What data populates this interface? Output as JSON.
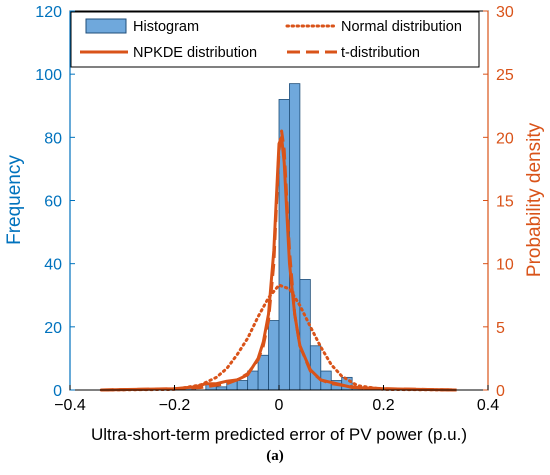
{
  "caption": "(a)",
  "chart_data": {
    "type": "histogram",
    "xlabel": "Ultra-short-term predicted error of PV power (p.u.)",
    "ylabel_left": "Frequency",
    "ylabel_right": "Probability density",
    "xlim": [
      -0.4,
      0.4
    ],
    "ylim_left": [
      0,
      120
    ],
    "ylim_right": [
      0,
      30
    ],
    "xticks": [
      "−0.4",
      "−0.2",
      "0",
      "0.2",
      "0.4"
    ],
    "xtick_values": [
      -0.4,
      -0.2,
      0,
      0.2,
      0.4
    ],
    "yticks_left": [
      "0",
      "20",
      "40",
      "60",
      "80",
      "100",
      "120"
    ],
    "yticks_right": [
      "0",
      "5",
      "10",
      "15",
      "20",
      "25",
      "30"
    ],
    "legend": {
      "position": "top",
      "entries": [
        "Histogram",
        "Normal distribution",
        "NPKDE distribution",
        "t-distribution"
      ]
    },
    "colors": {
      "left_axis": "#0072BD",
      "right_axis": "#D95319",
      "bar_fill": "#6FA8DC",
      "bar_edge": "#1F4E79",
      "curve": "#D95319"
    },
    "histogram": {
      "bin_edges": [
        -0.34,
        -0.32,
        -0.3,
        -0.28,
        -0.26,
        -0.24,
        -0.22,
        -0.2,
        -0.18,
        -0.16,
        -0.14,
        -0.12,
        -0.1,
        -0.08,
        -0.06,
        -0.04,
        -0.02,
        0.0,
        0.02,
        0.04,
        0.06,
        0.08,
        0.1,
        0.12,
        0.14,
        0.16,
        0.18,
        0.2,
        0.22,
        0.24,
        0.26,
        0.28,
        0.3,
        0.32,
        0.34
      ],
      "counts": [
        0,
        0,
        0,
        0,
        0,
        0,
        0,
        0,
        1,
        0,
        2,
        1,
        3,
        3,
        6,
        11,
        22,
        92,
        97,
        35,
        14,
        6,
        3,
        4,
        1,
        0,
        0,
        0,
        0,
        0,
        0,
        0,
        0,
        0
      ]
    },
    "series": [
      {
        "name": "NPKDE distribution",
        "style": "solid",
        "x": [
          -0.34,
          -0.2,
          -0.16,
          -0.14,
          -0.12,
          -0.1,
          -0.08,
          -0.06,
          -0.04,
          -0.03,
          -0.02,
          -0.01,
          0,
          0.005,
          0.01,
          0.02,
          0.03,
          0.04,
          0.06,
          0.08,
          0.1,
          0.12,
          0.14,
          0.2,
          0.34
        ],
        "y": [
          0,
          0.1,
          0.25,
          0.5,
          0.5,
          0.7,
          0.8,
          1.2,
          2.5,
          3.8,
          6,
          11,
          19.5,
          20,
          18,
          10,
          6,
          3.5,
          1.6,
          0.8,
          0.6,
          0.4,
          0.2,
          0.1,
          0
        ]
      },
      {
        "name": "Normal distribution",
        "style": "dotted",
        "x": [
          -0.34,
          -0.2,
          -0.15,
          -0.12,
          -0.1,
          -0.08,
          -0.06,
          -0.04,
          -0.02,
          0,
          0.02,
          0.04,
          0.06,
          0.08,
          0.1,
          0.12,
          0.15,
          0.2,
          0.34
        ],
        "y": [
          0,
          0.05,
          0.4,
          1.0,
          1.7,
          2.8,
          4.1,
          5.8,
          7.3,
          8.3,
          8.0,
          6.7,
          5.0,
          3.4,
          2.0,
          1.1,
          0.35,
          0.05,
          0
        ]
      },
      {
        "name": "t-distribution",
        "style": "dashed",
        "x": [
          -0.34,
          -0.2,
          -0.15,
          -0.1,
          -0.08,
          -0.06,
          -0.04,
          -0.03,
          -0.02,
          -0.01,
          0,
          0.005,
          0.01,
          0.02,
          0.03,
          0.04,
          0.06,
          0.08,
          0.1,
          0.15,
          0.2,
          0.34
        ],
        "y": [
          0,
          0.1,
          0.2,
          0.5,
          0.8,
          1.3,
          2.4,
          3.5,
          5.5,
          10,
          19,
          20.5,
          19,
          11,
          6,
          3.5,
          1.5,
          0.8,
          0.5,
          0.2,
          0.1,
          0
        ]
      }
    ]
  }
}
